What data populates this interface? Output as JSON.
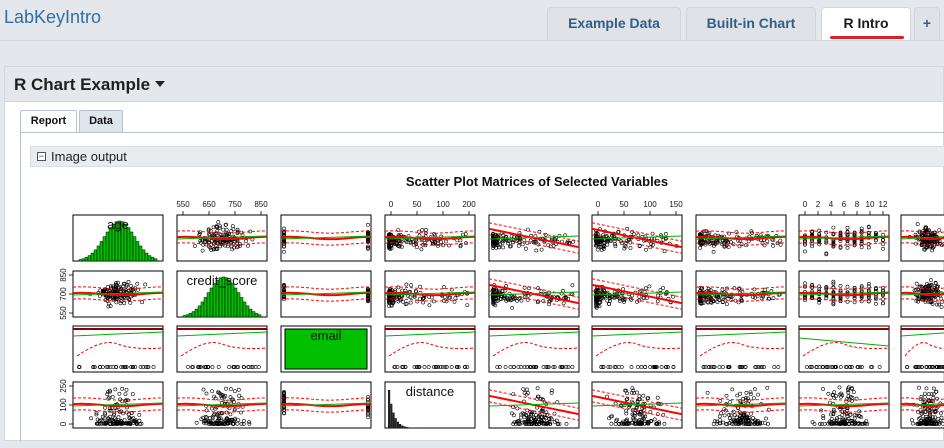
{
  "app": {
    "title": "LabKeyIntro"
  },
  "tabs": [
    {
      "label": "Example Data",
      "active": false
    },
    {
      "label": "Built-in Chart",
      "active": false
    },
    {
      "label": "R Intro",
      "active": true
    },
    {
      "label": "+",
      "active": false
    }
  ],
  "webpart": {
    "title": "R Chart Example"
  },
  "subtabs": [
    {
      "label": "Report",
      "active": true
    },
    {
      "label": "Data",
      "active": false
    }
  ],
  "section": {
    "collapse_icon": "minus-square-icon",
    "label": "Image output"
  },
  "colors": {
    "link": "#2f5f88",
    "active_underline": "#d9212c",
    "histogram": "#00c000",
    "smooth": "#ff0000",
    "fit": "#00b000"
  },
  "chart_data": {
    "type": "scatter",
    "title": "Scatter Plot Matrices of Selected Variables",
    "variables": [
      "age",
      "credit_score",
      "email",
      "distance"
    ],
    "top_axis_ticks": {
      "credit_score": [
        "550",
        "650",
        "750",
        "850"
      ],
      "distance": [
        "0",
        "50",
        "100",
        "200"
      ],
      "col6": [
        "0",
        "50",
        "100",
        "150"
      ],
      "col8": [
        "0",
        "2",
        "4",
        "6",
        "8",
        "10",
        "12"
      ]
    },
    "left_axis_ticks": {
      "credit_score": [
        "550",
        "700",
        "850"
      ],
      "distance": [
        "0",
        "100",
        "250"
      ]
    }
  }
}
